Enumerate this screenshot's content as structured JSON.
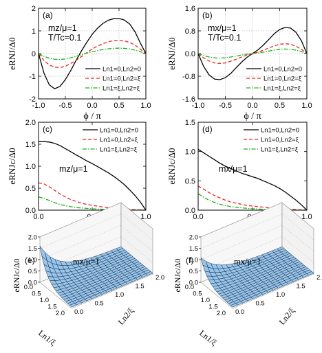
{
  "chart_data": [
    {
      "id": "a",
      "type": "line",
      "panel_label": "(a)",
      "annotation": [
        "mz/μ=1",
        "T/Tc=0.1"
      ],
      "xlabel": "ϕ / π",
      "ylabel": "eRNJ/Δ0",
      "xlim": [
        -1.0,
        1.0
      ],
      "ylim": [
        -2,
        2
      ],
      "xticks": [
        "-1.0",
        "-0.5",
        "0.0",
        "0.5",
        "1.0"
      ],
      "yticks": [
        "-2",
        "-1",
        "0",
        "1",
        "2"
      ],
      "grid": true,
      "legend": "bottom-right",
      "x": [
        -1.0,
        -0.9,
        -0.8,
        -0.7,
        -0.6,
        -0.5,
        -0.4,
        -0.3,
        -0.2,
        -0.1,
        0.0,
        0.1,
        0.2,
        0.3,
        0.4,
        0.5,
        0.6,
        0.7,
        0.8,
        0.9,
        1.0
      ],
      "series": [
        {
          "name": "Ln1=0,Ln2=0",
          "color": "#000000",
          "dash": "solid",
          "values": [
            0.0,
            -0.85,
            -1.38,
            -1.55,
            -1.45,
            -1.15,
            -0.75,
            -0.3,
            0.12,
            0.5,
            0.85,
            1.12,
            1.33,
            1.47,
            1.54,
            1.55,
            1.48,
            1.3,
            0.95,
            0.45,
            0.0
          ]
        },
        {
          "name": "Ln1=0,Ln2=ξ",
          "color": "#e8261c",
          "dash": "dashed",
          "values": [
            0.0,
            -0.3,
            -0.5,
            -0.6,
            -0.62,
            -0.56,
            -0.44,
            -0.3,
            -0.13,
            0.04,
            0.2,
            0.33,
            0.44,
            0.52,
            0.57,
            0.58,
            0.56,
            0.49,
            0.37,
            0.19,
            0.0
          ]
        },
        {
          "name": "Ln1=ξ,Ln2=ξ",
          "color": "#19b219",
          "dash": "dashdot",
          "values": [
            0.0,
            -0.12,
            -0.2,
            -0.25,
            -0.26,
            -0.24,
            -0.19,
            -0.12,
            -0.05,
            0.02,
            0.08,
            0.13,
            0.18,
            0.21,
            0.23,
            0.24,
            0.23,
            0.2,
            0.15,
            0.08,
            0.0
          ]
        }
      ]
    },
    {
      "id": "b",
      "type": "line",
      "panel_label": "(b)",
      "annotation": [
        "mx/μ=1",
        "T/Tc=0.1"
      ],
      "xlabel": "ϕ / π",
      "ylabel": "eRNJ/Δ0",
      "xlim": [
        -1.0,
        1.0
      ],
      "ylim": [
        -1.6,
        1.6
      ],
      "xticks": [
        "-1.0",
        "-0.5",
        "0.0",
        "0.5",
        "1.0"
      ],
      "yticks": [
        "-1.6",
        "-0.8",
        "0.0",
        "0.8",
        "1.6"
      ],
      "grid": true,
      "legend": "bottom-right",
      "x": [
        -1.0,
        -0.9,
        -0.8,
        -0.7,
        -0.6,
        -0.5,
        -0.4,
        -0.3,
        -0.2,
        -0.1,
        0.0,
        0.1,
        0.2,
        0.3,
        0.4,
        0.5,
        0.6,
        0.7,
        0.8,
        0.9,
        1.0
      ],
      "series": [
        {
          "name": "Ln1=0,Ln2=0",
          "color": "#000000",
          "dash": "solid",
          "values": [
            0.0,
            -0.45,
            -0.75,
            -0.9,
            -0.92,
            -0.85,
            -0.7,
            -0.5,
            -0.3,
            -0.13,
            0.0,
            0.13,
            0.3,
            0.5,
            0.7,
            0.85,
            0.92,
            0.9,
            0.75,
            0.45,
            0.0
          ]
        },
        {
          "name": "Ln1=0,Ln2=ξ",
          "color": "#e8261c",
          "dash": "dashed",
          "values": [
            0.0,
            -0.15,
            -0.26,
            -0.33,
            -0.35,
            -0.33,
            -0.27,
            -0.2,
            -0.12,
            -0.05,
            0.0,
            0.05,
            0.12,
            0.2,
            0.27,
            0.33,
            0.35,
            0.33,
            0.26,
            0.15,
            0.0
          ]
        },
        {
          "name": "Ln1=ξ,Ln2=ξ",
          "color": "#19b219",
          "dash": "dashdot",
          "values": [
            0.0,
            -0.07,
            -0.12,
            -0.15,
            -0.16,
            -0.15,
            -0.12,
            -0.09,
            -0.05,
            -0.02,
            0.0,
            0.02,
            0.05,
            0.09,
            0.12,
            0.15,
            0.16,
            0.15,
            0.12,
            0.07,
            0.0
          ]
        }
      ]
    },
    {
      "id": "c",
      "type": "line",
      "panel_label": "(c)",
      "annotation": [
        "mz/μ=1"
      ],
      "xlabel": "T/Tc",
      "ylabel": "eRNJc/Δ0",
      "xlim": [
        0.0,
        1.0
      ],
      "ylim": [
        0.0,
        2.0
      ],
      "xticks": [
        "0.0",
        "0.5",
        "1.0"
      ],
      "yticks": [
        "0.0",
        "0.5",
        "1.0",
        "1.5",
        "2.0"
      ],
      "grid": false,
      "legend": "top-right",
      "x": [
        0.0,
        0.05,
        0.1,
        0.15,
        0.2,
        0.25,
        0.3,
        0.35,
        0.4,
        0.45,
        0.5,
        0.55,
        0.6,
        0.65,
        0.7,
        0.75,
        0.8,
        0.85,
        0.9,
        0.95,
        1.0
      ],
      "series": [
        {
          "name": "Ln1=0,Ln2=0",
          "color": "#000000",
          "dash": "solid",
          "values": [
            1.56,
            1.56,
            1.55,
            1.52,
            1.47,
            1.4,
            1.33,
            1.26,
            1.19,
            1.12,
            1.06,
            0.99,
            0.92,
            0.85,
            0.77,
            0.68,
            0.58,
            0.46,
            0.33,
            0.18,
            0.0
          ]
        },
        {
          "name": "Ln1=0,Ln2=ξ",
          "color": "#e8261c",
          "dash": "dashed",
          "values": [
            0.62,
            0.6,
            0.53,
            0.45,
            0.37,
            0.3,
            0.24,
            0.2,
            0.16,
            0.13,
            0.11,
            0.09,
            0.07,
            0.06,
            0.05,
            0.04,
            0.03,
            0.02,
            0.01,
            0.005,
            0.0
          ]
        },
        {
          "name": "Ln1=ξ,Ln2=ξ",
          "color": "#19b219",
          "dash": "dashdot",
          "values": [
            0.3,
            0.27,
            0.22,
            0.17,
            0.13,
            0.1,
            0.08,
            0.06,
            0.05,
            0.04,
            0.03,
            0.025,
            0.02,
            0.015,
            0.01,
            0.008,
            0.005,
            0.003,
            0.002,
            0.001,
            0.0
          ]
        }
      ]
    },
    {
      "id": "d",
      "type": "line",
      "panel_label": "(d)",
      "annotation": [
        "mx/μ=1"
      ],
      "xlabel": "T/Tc",
      "ylabel": "eRNJc/Δ0",
      "xlim": [
        0.0,
        1.0
      ],
      "ylim": [
        0.0,
        1.5
      ],
      "xticks": [
        "0.0",
        "0.5",
        "1.0"
      ],
      "yticks": [
        "0.0",
        "0.5",
        "1.0",
        "1.5"
      ],
      "grid": false,
      "legend": "top-right",
      "x": [
        0.0,
        0.05,
        0.1,
        0.15,
        0.2,
        0.25,
        0.3,
        0.35,
        0.4,
        0.45,
        0.5,
        0.55,
        0.6,
        0.65,
        0.7,
        0.75,
        0.8,
        0.85,
        0.9,
        0.95,
        1.0
      ],
      "series": [
        {
          "name": "Ln1=0,Ln2=0",
          "color": "#000000",
          "dash": "solid",
          "values": [
            1.04,
            0.98,
            0.92,
            0.86,
            0.8,
            0.75,
            0.71,
            0.67,
            0.63,
            0.6,
            0.57,
            0.54,
            0.5,
            0.46,
            0.42,
            0.37,
            0.31,
            0.24,
            0.17,
            0.09,
            0.0
          ]
        },
        {
          "name": "Ln1=0,Ln2=ξ",
          "color": "#e8261c",
          "dash": "dashed",
          "values": [
            0.41,
            0.36,
            0.3,
            0.25,
            0.21,
            0.17,
            0.14,
            0.12,
            0.1,
            0.08,
            0.07,
            0.06,
            0.05,
            0.04,
            0.03,
            0.025,
            0.02,
            0.015,
            0.01,
            0.005,
            0.0
          ]
        },
        {
          "name": "Ln1=ξ,Ln2=ξ",
          "color": "#19b219",
          "dash": "dashdot",
          "values": [
            0.28,
            0.22,
            0.17,
            0.13,
            0.1,
            0.08,
            0.06,
            0.05,
            0.04,
            0.03,
            0.025,
            0.02,
            0.015,
            0.012,
            0.01,
            0.008,
            0.006,
            0.004,
            0.002,
            0.001,
            0.0
          ]
        }
      ]
    },
    {
      "id": "e",
      "type": "surface",
      "panel_label": "(e)",
      "annotation": [
        "mz/μ=1"
      ],
      "zlabel": "eRNJc/Δ0",
      "xlabel": "Ln1/ξ",
      "ylabel": "Ln2/ξ",
      "xlim": [
        0.0,
        2.0
      ],
      "ylim": [
        0.0,
        2.0
      ],
      "zlim": [
        0.0,
        2.0
      ],
      "xticks": [
        "0.0",
        "0.5",
        "1.0",
        "1.5",
        "2.0"
      ],
      "yticks": [
        "0.0",
        "0.5",
        "1.0",
        "1.5",
        "2.0"
      ],
      "zticks": [
        "0.0",
        "0.5",
        "1.0",
        "1.5",
        "2.0"
      ],
      "z_at_origin": 1.56,
      "decay_length": 0.45,
      "surface_color": "#8fc3ec"
    },
    {
      "id": "f",
      "type": "surface",
      "panel_label": "(f)",
      "annotation": [
        "mx/μ=1"
      ],
      "zlabel": "eRNJc/Δ0",
      "xlabel": "Ln1/ξ",
      "ylabel": "Ln2/ξ",
      "xlim": [
        0.0,
        2.0
      ],
      "ylim": [
        0.0,
        2.0
      ],
      "zlim": [
        0.0,
        2.0
      ],
      "xticks": [
        "0.0",
        "0.5",
        "1.0",
        "1.5",
        "2.0"
      ],
      "yticks": [
        "0.0",
        "0.5",
        "1.0",
        "1.5",
        "2.0"
      ],
      "zticks": [
        "0.0",
        "0.5",
        "1.0",
        "1.5",
        "2.0"
      ],
      "z_at_origin": 1.04,
      "decay_length": 0.45,
      "surface_color": "#8fc3ec"
    }
  ]
}
